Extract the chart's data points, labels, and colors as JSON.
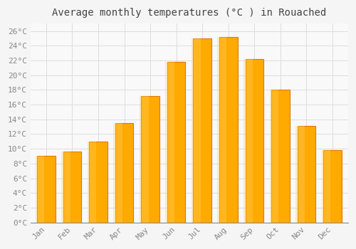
{
  "title": "Average monthly temperatures (°C ) in Rouached",
  "months": [
    "Jan",
    "Feb",
    "Mar",
    "Apr",
    "May",
    "Jun",
    "Jul",
    "Aug",
    "Sep",
    "Oct",
    "Nov",
    "Dec"
  ],
  "temperatures": [
    9.0,
    9.6,
    11.0,
    13.5,
    17.2,
    21.8,
    25.0,
    25.2,
    22.2,
    18.0,
    13.1,
    9.8
  ],
  "bar_color": "#FFA500",
  "bar_edge_color": "#E08000",
  "background_color": "#F5F5F5",
  "plot_bg_color": "#F9F9F9",
  "grid_color": "#DDDDDD",
  "tick_label_color": "#888888",
  "title_color": "#444444",
  "ylim": [
    0,
    27
  ],
  "yticks": [
    0,
    2,
    4,
    6,
    8,
    10,
    12,
    14,
    16,
    18,
    20,
    22,
    24,
    26
  ],
  "title_fontsize": 10,
  "tick_fontsize": 8,
  "font_family": "monospace"
}
